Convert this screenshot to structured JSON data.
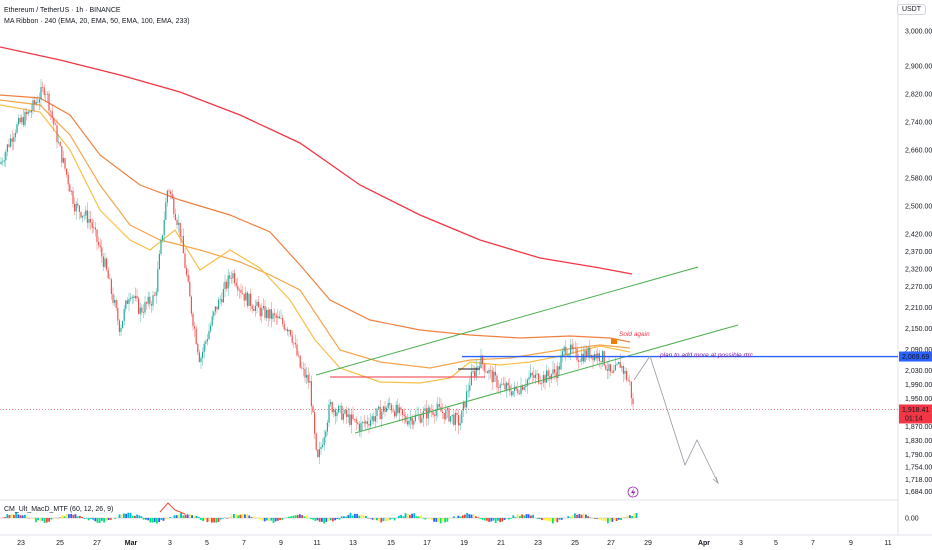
{
  "header": {
    "symbol": "Ethereum / TetherUS · 1h · BINANCE",
    "indicator": "MA Ribbon · 240 (EMA, 20, EMA, 50, EMA, 100, EMA, 233)",
    "macd_indicator": "CM_Ult_MacD_MTF (60, 12, 26, 9)"
  },
  "currency": "USDT",
  "price_labels": {
    "level": "2,069.69",
    "last": "1,918.41",
    "countdown": "01:14"
  },
  "annotations": {
    "sold_again": "Sold again",
    "plan": "plan to add more at possible rtrc"
  },
  "colors": {
    "ema20": "#f7c04a",
    "ema50": "#f5a54c",
    "ema100": "#f08040",
    "ema233": "#f23645",
    "channel": "#4caf50",
    "resistance": "#2962ff",
    "up": "#26a69a",
    "down": "#ef5350",
    "support": "#f23645",
    "projection": "#9598a1"
  },
  "chart_data": {
    "type": "candlestick",
    "y_ticks": [
      3000,
      2900,
      2820,
      2740,
      2660,
      2580,
      2500,
      2420,
      2370,
      2320,
      2270,
      2210,
      2150,
      2090,
      2030,
      1990,
      1950,
      1870,
      1830,
      1790,
      1754,
      1718,
      1684
    ],
    "y_tick_labels": [
      "3,000.00",
      "2,900.00",
      "2,820.00",
      "2,740.00",
      "2,660.00",
      "2,580.00",
      "2,500.00",
      "2,420.00",
      "2,370.00",
      "2,320.00",
      "2,270.00",
      "2,210.00",
      "2,150.00",
      "2,090.00",
      "2,030.00",
      "1,990.00",
      "1,950.00",
      "1,870.00",
      "1,830.00",
      "1,790.00",
      "1,754.00",
      "1,718.00",
      "1,684.00"
    ],
    "x_tick_labels": [
      "23",
      "25",
      "27",
      "Mar",
      "3",
      "5",
      "7",
      "9",
      "11",
      "13",
      "15",
      "17",
      "19",
      "21",
      "23",
      "25",
      "27",
      "29",
      "Apr",
      "3",
      "5",
      "7",
      "9",
      "11"
    ],
    "resistance_level": 2069.69,
    "last_price": 1918.41,
    "macd": {
      "tick_label": "0.00",
      "value": 0
    }
  }
}
